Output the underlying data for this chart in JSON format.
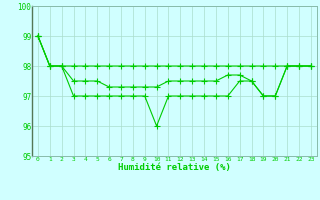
{
  "x": [
    0,
    1,
    2,
    3,
    4,
    5,
    6,
    7,
    8,
    9,
    10,
    11,
    12,
    13,
    14,
    15,
    16,
    17,
    18,
    19,
    20,
    21,
    22,
    23
  ],
  "line_max": [
    99,
    98,
    98,
    98,
    98,
    98,
    98,
    98,
    98,
    98,
    98,
    98,
    98,
    98,
    98,
    98,
    98,
    98,
    98,
    98,
    98,
    98,
    98,
    98
  ],
  "line_mean": [
    99,
    98,
    98,
    97.5,
    97.5,
    97.5,
    97.3,
    97.3,
    97.3,
    97.3,
    97.3,
    97.5,
    97.5,
    97.5,
    97.5,
    97.5,
    97.7,
    97.7,
    97.5,
    97,
    97,
    98,
    98,
    98
  ],
  "line_min": [
    99,
    98,
    98,
    97,
    97,
    97,
    97,
    97,
    97,
    97,
    96,
    97,
    97,
    97,
    97,
    97,
    97,
    97.5,
    97.5,
    97,
    97,
    98,
    98,
    98
  ],
  "ylim": [
    95,
    100
  ],
  "yticks": [
    95,
    96,
    97,
    98,
    99,
    100
  ],
  "xlabel": "Humidité relative (%)",
  "line_color": "#00CC00",
  "bg_color": "#D0FFFF",
  "grid_color": "#AADDCC",
  "marker": "+",
  "markersize": 4,
  "linewidth": 0.8,
  "xlabel_fontsize": 6.5,
  "ytick_fontsize": 5.5,
  "xtick_fontsize": 4.5
}
